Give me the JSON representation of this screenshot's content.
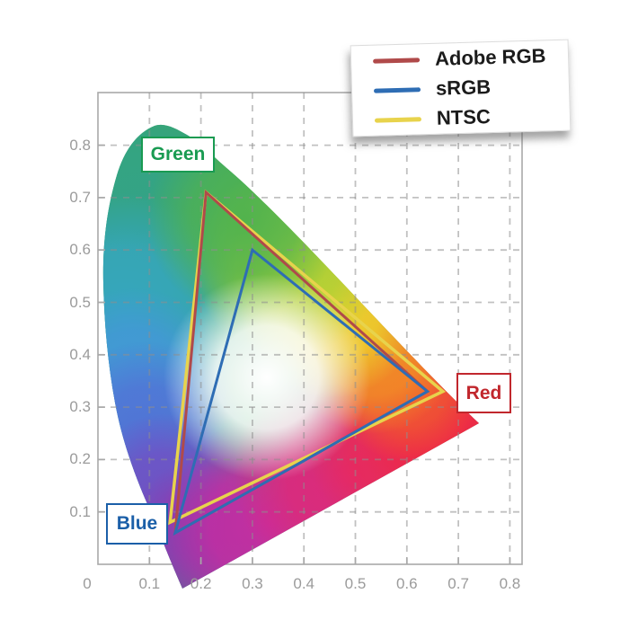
{
  "page": {
    "background": "#ffffff"
  },
  "legend": {
    "entries": [
      {
        "label": "Adobe RGB",
        "color": "#b04a4a"
      },
      {
        "label": "sRGB",
        "color": "#2e6db4"
      },
      {
        "label": "NTSC",
        "color": "#e8d34c"
      }
    ]
  },
  "region_labels": {
    "green": {
      "text": "Green",
      "color": "#199b52"
    },
    "red": {
      "text": "Red",
      "color": "#c1272d"
    },
    "blue": {
      "text": "Blue",
      "color": "#1b5fa8"
    }
  },
  "axes": {
    "x_tick_labels": [
      "0",
      "0.1",
      "0.2",
      "0.3",
      "0.4",
      "0.5",
      "0.6",
      "0.7",
      "0.8"
    ],
    "y_tick_labels": [
      "0.1",
      "0.2",
      "0.3",
      "0.4",
      "0.5",
      "0.6",
      "0.7",
      "0.8"
    ]
  },
  "chart_data": {
    "type": "line",
    "title": "",
    "xlabel": "",
    "ylabel": "",
    "xlim": [
      0,
      0.83
    ],
    "ylim": [
      0,
      0.9
    ],
    "x_tick_values": [
      0,
      0.1,
      0.2,
      0.3,
      0.4,
      0.5,
      0.6,
      0.7,
      0.8
    ],
    "y_tick_values": [
      0.1,
      0.2,
      0.3,
      0.4,
      0.5,
      0.6,
      0.7,
      0.8
    ],
    "grid": true,
    "grid_style": "dashed",
    "legend_position": "top-right",
    "background_shape": "CIE 1931 xy chromaticity spectral locus (horseshoe) filled with spectrum gradient, white point near (0.33, 0.34)",
    "series": [
      {
        "name": "Adobe RGB",
        "color": "#b04a4a",
        "closed": true,
        "points": [
          [
            0.64,
            0.33
          ],
          [
            0.21,
            0.71
          ],
          [
            0.15,
            0.06
          ]
        ]
      },
      {
        "name": "sRGB",
        "color": "#2e6db4",
        "closed": true,
        "points": [
          [
            0.64,
            0.33
          ],
          [
            0.3,
            0.6
          ],
          [
            0.15,
            0.06
          ]
        ]
      },
      {
        "name": "NTSC",
        "color": "#e8d34c",
        "closed": true,
        "points": [
          [
            0.67,
            0.33
          ],
          [
            0.21,
            0.71
          ],
          [
            0.14,
            0.08
          ]
        ]
      }
    ],
    "draw_order": [
      "NTSC",
      "Adobe RGB",
      "sRGB"
    ],
    "annotations": [
      {
        "text": "Green",
        "xy": [
          0.12,
          0.78
        ]
      },
      {
        "text": "Red",
        "xy": [
          0.72,
          0.34
        ]
      },
      {
        "text": "Blue",
        "xy": [
          0.05,
          0.09
        ]
      }
    ]
  }
}
